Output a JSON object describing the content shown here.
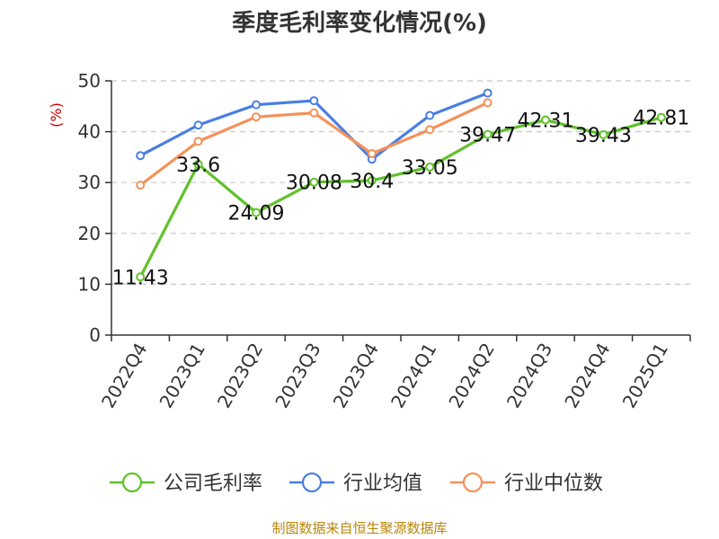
{
  "chart_data": {
    "type": "line",
    "title": "季度毛利率变化情况(%)",
    "ylabel": "(%)",
    "xlabel": "",
    "ylim": [
      0,
      50
    ],
    "yticks": [
      0,
      10,
      20,
      30,
      40,
      50
    ],
    "grid": true,
    "legend_position": "bottom",
    "categories": [
      "2022Q4",
      "2023Q1",
      "2023Q2",
      "2023Q3",
      "2023Q4",
      "2024Q1",
      "2024Q2",
      "2024Q3",
      "2024Q4",
      "2025Q1"
    ],
    "series": [
      {
        "name": "公司毛利率",
        "color": "#5fc229",
        "values": [
          11.43,
          33.6,
          24.09,
          30.08,
          30.4,
          33.05,
          39.47,
          42.31,
          39.43,
          42.81
        ],
        "labels": [
          "11.43",
          "33.6",
          "24.09",
          "30.08",
          "30.4",
          "33.05",
          "39.47",
          "42.31",
          "39.43",
          "42.81"
        ],
        "show_labels": true
      },
      {
        "name": "行业均值",
        "color": "#4a7fe0",
        "values": [
          35.3,
          41.3,
          45.3,
          46.1,
          34.6,
          43.2,
          47.6,
          null,
          null,
          null
        ],
        "show_labels": false
      },
      {
        "name": "行业中位数",
        "color": "#f5915a",
        "values": [
          29.5,
          38.1,
          42.9,
          43.7,
          35.7,
          40.4,
          45.7,
          null,
          null,
          null
        ],
        "show_labels": false
      }
    ],
    "source": "制图数据来自恒生聚源数据库"
  }
}
